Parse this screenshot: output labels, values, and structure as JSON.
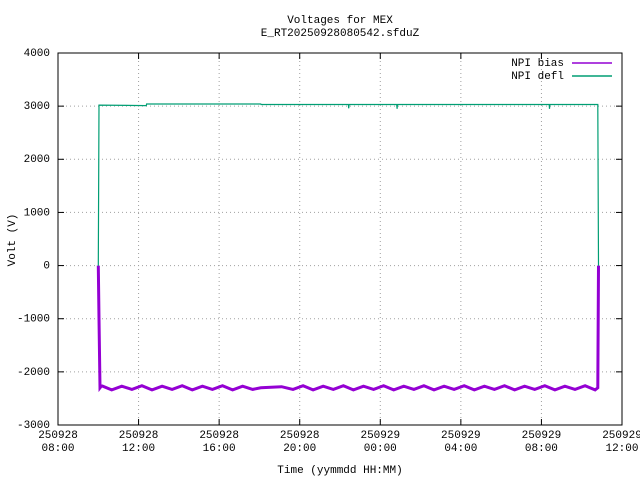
{
  "chart_data": {
    "type": "line",
    "title": "Voltages for MEX",
    "subtitle": "E_RT20250928080542.sfduZ",
    "xlabel": "Time (yymmdd HH:MM)",
    "ylabel": "Volt (V)",
    "xlim": [
      "250928 08:00",
      "250929 12:00"
    ],
    "xticks": [
      "250928 08:00",
      "250928 12:00",
      "250928 16:00",
      "250928 20:00",
      "250929 00:00",
      "250929 04:00",
      "250929 08:00",
      "250929 12:00"
    ],
    "ylim": [
      -3000,
      4000
    ],
    "yticks": [
      -3000,
      -2000,
      -1000,
      0,
      1000,
      2000,
      3000,
      4000
    ],
    "grid": true,
    "legend": "top-right",
    "series": [
      {
        "name": "NPI bias",
        "color": "#9400d3",
        "x": [
          "250928 10:00",
          "250928 10:02",
          "250928 10:05",
          "250928 10:10",
          "250928 10:40",
          "250928 11:10",
          "250928 11:40",
          "250928 12:10",
          "250928 12:40",
          "250928 13:10",
          "250928 13:40",
          "250928 14:10",
          "250928 14:40",
          "250928 15:10",
          "250928 15:40",
          "250928 16:10",
          "250928 16:40",
          "250928 17:10",
          "250928 17:40",
          "250928 18:04",
          "250928 19:06",
          "250928 19:40",
          "250928 20:10",
          "250928 20:40",
          "250928 21:10",
          "250928 21:40",
          "250928 22:10",
          "250928 22:40",
          "250928 23:10",
          "250928 23:40",
          "250929 00:10",
          "250929 00:40",
          "250929 01:10",
          "250929 01:40",
          "250929 02:10",
          "250929 02:40",
          "250929 03:10",
          "250929 03:40",
          "250929 04:10",
          "250929 04:40",
          "250929 05:10",
          "250929 05:40",
          "250929 06:10",
          "250929 06:40",
          "250929 07:10",
          "250929 07:40",
          "250929 08:10",
          "250929 08:40",
          "250929 09:10",
          "250929 09:40",
          "250929 10:10",
          "250929 10:40",
          "250929 10:48",
          "250929 10:50"
        ],
        "values": [
          0,
          -1000,
          -2300,
          -2260,
          -2340,
          -2270,
          -2330,
          -2260,
          -2340,
          -2270,
          -2330,
          -2260,
          -2340,
          -2270,
          -2330,
          -2260,
          -2340,
          -2270,
          -2330,
          -2300,
          -2280,
          -2330,
          -2260,
          -2340,
          -2270,
          -2330,
          -2260,
          -2340,
          -2270,
          -2330,
          -2260,
          -2340,
          -2270,
          -2330,
          -2260,
          -2340,
          -2270,
          -2330,
          -2260,
          -2340,
          -2270,
          -2330,
          -2260,
          -2340,
          -2270,
          -2330,
          -2260,
          -2340,
          -2270,
          -2330,
          -2260,
          -2340,
          -2300,
          0
        ]
      },
      {
        "name": "NPI defl",
        "color": "#009e73",
        "x": [
          "250928 10:00",
          "250928 10:02",
          "250928 12:23",
          "250928 12:24",
          "250928 18:04",
          "250928 18:05",
          "250928 22:25",
          "250928 22:26",
          "250928 22:27",
          "250929 00:49",
          "250929 00:50",
          "250929 00:51",
          "250929 08:23",
          "250929 08:24",
          "250929 08:25",
          "250929 10:48",
          "250929 10:50"
        ],
        "values": [
          0,
          3020,
          3010,
          3040,
          3040,
          3030,
          3030,
          2960,
          3030,
          3030,
          2950,
          3030,
          3030,
          2950,
          3030,
          3030,
          0
        ]
      }
    ]
  }
}
